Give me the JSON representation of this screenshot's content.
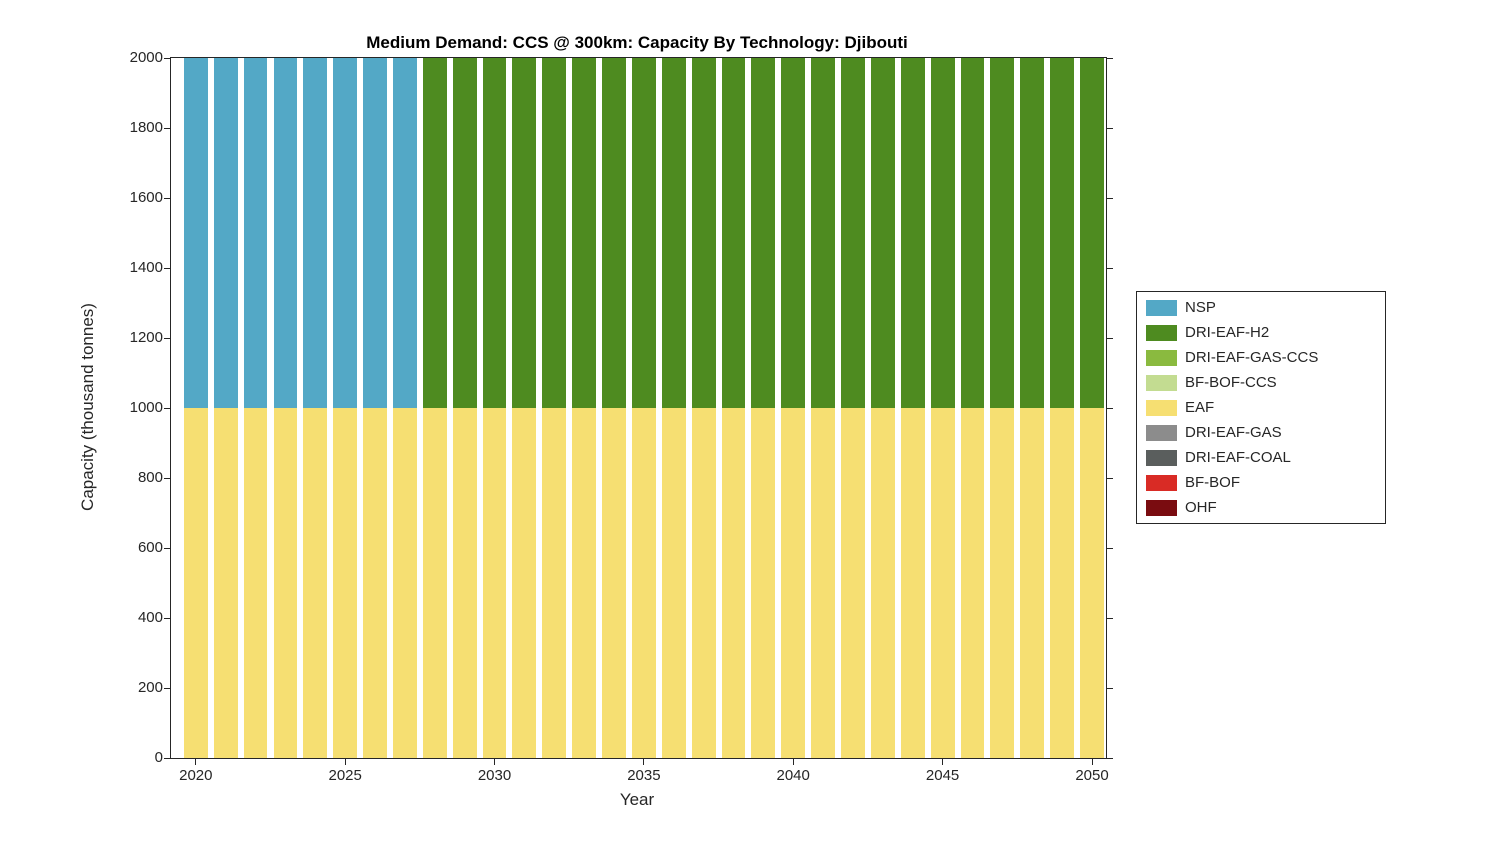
{
  "chart_data": {
    "type": "bar",
    "stacked": true,
    "title": "Medium Demand: CCS @ 300km: Capacity By Technology: Djibouti",
    "xlabel": "Year",
    "ylabel": "Capacity (thousand tonnes)",
    "ylim": [
      0,
      2000
    ],
    "yticks": [
      0,
      200,
      400,
      600,
      800,
      1000,
      1200,
      1400,
      1600,
      1800,
      2000
    ],
    "xticks": [
      2020,
      2025,
      2030,
      2035,
      2040,
      2045,
      2050
    ],
    "grid": false,
    "legend_position": "right-outside",
    "x": [
      2020,
      2021,
      2022,
      2023,
      2024,
      2025,
      2026,
      2027,
      2028,
      2029,
      2030,
      2031,
      2032,
      2033,
      2034,
      2035,
      2036,
      2037,
      2038,
      2039,
      2040,
      2041,
      2042,
      2043,
      2044,
      2045,
      2046,
      2047,
      2048,
      2049,
      2050
    ],
    "series": [
      {
        "name": "EAF",
        "color": "#F6DF72",
        "values": [
          1000,
          1000,
          1000,
          1000,
          1000,
          1000,
          1000,
          1000,
          1000,
          1000,
          1000,
          1000,
          1000,
          1000,
          1000,
          1000,
          1000,
          1000,
          1000,
          1000,
          1000,
          1000,
          1000,
          1000,
          1000,
          1000,
          1000,
          1000,
          1000,
          1000,
          1000
        ]
      },
      {
        "name": "NSP",
        "color": "#53A8C6",
        "values": [
          1000,
          1000,
          1000,
          1000,
          1000,
          1000,
          1000,
          1000,
          0,
          0,
          0,
          0,
          0,
          0,
          0,
          0,
          0,
          0,
          0,
          0,
          0,
          0,
          0,
          0,
          0,
          0,
          0,
          0,
          0,
          0,
          0
        ]
      },
      {
        "name": "DRI-EAF-H2",
        "color": "#4E8B20",
        "values": [
          0,
          0,
          0,
          0,
          0,
          0,
          0,
          0,
          1000,
          1000,
          1000,
          1000,
          1000,
          1000,
          1000,
          1000,
          1000,
          1000,
          1000,
          1000,
          1000,
          1000,
          1000,
          1000,
          1000,
          1000,
          1000,
          1000,
          1000,
          1000,
          1000
        ]
      }
    ],
    "legend": [
      {
        "label": "NSP",
        "color": "#53A8C6"
      },
      {
        "label": "DRI-EAF-H2",
        "color": "#4E8B20"
      },
      {
        "label": "DRI-EAF-GAS-CCS",
        "color": "#8ABA3F"
      },
      {
        "label": "BF-BOF-CCS",
        "color": "#C3DC91"
      },
      {
        "label": "EAF",
        "color": "#F6DF72"
      },
      {
        "label": "DRI-EAF-GAS",
        "color": "#8C8C8C"
      },
      {
        "label": "DRI-EAF-COAL",
        "color": "#5A5E5D"
      },
      {
        "label": "BF-BOF",
        "color": "#D92B25"
      },
      {
        "label": "OHF",
        "color": "#7A0C10"
      }
    ]
  }
}
